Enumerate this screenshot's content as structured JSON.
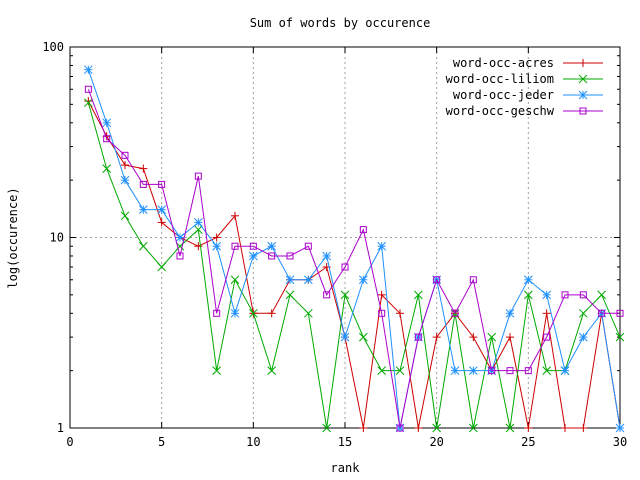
{
  "chart_data": {
    "type": "line",
    "title": "Sum of words by occurence",
    "xlabel": "rank",
    "ylabel": "log(occurence)",
    "xlim": [
      0,
      30
    ],
    "ylim": [
      1,
      100
    ],
    "yscale": "log",
    "grid": true,
    "legend_position": "top-right",
    "x_ticks": [
      0,
      5,
      10,
      15,
      20,
      25,
      30
    ],
    "x_tick_labels": [
      "0",
      "5",
      "10",
      "15",
      "20",
      "25",
      "30"
    ],
    "y_ticks": [
      1,
      10,
      100
    ],
    "y_tick_labels": [
      "1",
      "10",
      "100"
    ],
    "x": [
      1,
      2,
      3,
      4,
      5,
      6,
      7,
      8,
      9,
      10,
      11,
      12,
      13,
      14,
      15,
      16,
      17,
      18,
      19,
      20,
      21,
      22,
      23,
      24,
      25,
      26,
      27,
      28,
      29,
      30
    ],
    "series": [
      {
        "name": "word-occ-acres",
        "color": "#cc0000",
        "marker": "plus",
        "values": [
          52,
          34,
          24,
          23,
          12,
          10,
          9,
          10,
          13,
          4,
          4,
          6,
          6,
          7,
          3,
          1,
          5,
          4,
          1,
          3,
          4,
          3,
          2,
          3,
          1,
          4,
          1,
          1,
          4,
          1
        ]
      },
      {
        "name": "word-occ-liliom",
        "color": "#00aa00",
        "marker": "cross",
        "values": [
          51,
          23,
          13,
          9,
          7,
          9,
          11,
          2,
          6,
          4,
          2,
          5,
          4,
          1,
          5,
          3,
          2,
          2,
          5,
          1,
          4,
          1,
          3,
          1,
          5,
          2,
          2,
          4,
          5,
          3
        ]
      },
      {
        "name": "word-occ-jeder",
        "color": "#1e90ff",
        "marker": "star",
        "values": [
          76,
          40,
          20,
          14,
          14,
          10,
          12,
          9,
          4,
          8,
          9,
          6,
          6,
          8,
          3,
          6,
          9,
          1,
          3,
          6,
          2,
          2,
          2,
          4,
          6,
          5,
          2,
          3,
          4,
          1
        ]
      },
      {
        "name": "word-occ-geschw",
        "color": "#aa00cc",
        "marker": "square",
        "values": [
          60,
          33,
          27,
          19,
          19,
          8,
          21,
          4,
          9,
          9,
          8,
          8,
          9,
          5,
          7,
          11,
          4,
          1,
          3,
          6,
          4,
          6,
          2,
          2,
          2,
          3,
          5,
          5,
          4,
          4
        ]
      }
    ]
  }
}
